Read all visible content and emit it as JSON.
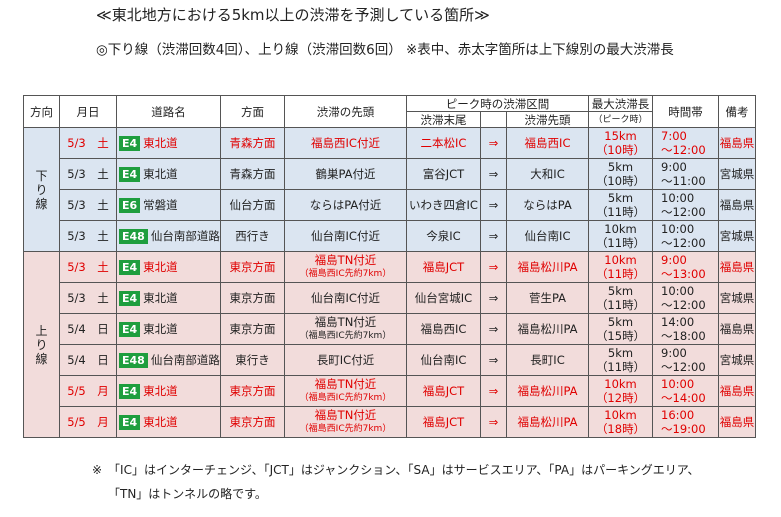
{
  "title": "≪東北地方における5km以上の渋滞を予測している箇所≫",
  "subtitle": "◎下り線（渋滞回数4回）、上り線（渋滞回数6回） ※表中、赤太字箇所は上下線別の最大渋滞長",
  "headers": {
    "direction": "方向",
    "date": "月日",
    "route": "道路名",
    "bound": "方面",
    "head": "渋滞の先頭",
    "peak_section": "ピーク時の渋滞区間",
    "tail_sub": "渋滞末尾",
    "head_sub": "渋滞先頭",
    "max_len": "最大渋滞長",
    "max_len_sub": "（ピーク時）",
    "time": "時間帯",
    "remarks": "備考"
  },
  "groups": {
    "down": [
      "下",
      "り",
      "線"
    ],
    "up": [
      "上",
      "り",
      "線"
    ]
  },
  "arrow": "⇒",
  "rows": [
    {
      "date": "5/3　土",
      "badge": "E4",
      "road": "東北道",
      "bound": "青森方面",
      "head": "福島西IC付近",
      "head2": "",
      "tail": "二本松IC",
      "sec_head": "福島西IC",
      "len": "15km",
      "len2": "（10時）",
      "time1": "7:00",
      "time2": "～12:00",
      "remarks": "福島県"
    },
    {
      "date": "5/3　土",
      "badge": "E4",
      "road": "東北道",
      "bound": "青森方面",
      "head": "鶴巣PA付近",
      "head2": "",
      "tail": "富谷JCT",
      "sec_head": "大和IC",
      "len": "5km",
      "len2": "（10時）",
      "time1": "9:00",
      "time2": "～11:00",
      "remarks": "宮城県"
    },
    {
      "date": "5/3　土",
      "badge": "E6",
      "road": "常磐道",
      "bound": "仙台方面",
      "head": "ならはPA付近",
      "head2": "",
      "tail": "いわき四倉IC",
      "sec_head": "ならはPA",
      "len": "5km",
      "len2": "（11時）",
      "time1": "10:00",
      "time2": "～12:00",
      "remarks": "福島県"
    },
    {
      "date": "5/3　土",
      "badge": "E48",
      "road": "仙台南部道路",
      "bound": "西行き",
      "head": "仙台南IC付近",
      "head2": "",
      "tail": "今泉IC",
      "sec_head": "仙台南IC",
      "len": "10km",
      "len2": "（11時）",
      "time1": "10:00",
      "time2": "～12:00",
      "remarks": "宮城県"
    },
    {
      "date": "5/3　土",
      "badge": "E4",
      "road": "東北道",
      "bound": "東京方面",
      "head": "福島TN付近",
      "head2": "（福島西IC先約7km）",
      "tail": "福島JCT",
      "sec_head": "福島松川PA",
      "len": "10km",
      "len2": "（11時）",
      "time1": "9:00",
      "time2": "～13:00",
      "remarks": "福島県"
    },
    {
      "date": "5/3　土",
      "badge": "E4",
      "road": "東北道",
      "bound": "東京方面",
      "head": "仙台南IC付近",
      "head2": "",
      "tail": "仙台宮城IC",
      "sec_head": "菅生PA",
      "len": "5km",
      "len2": "（11時）",
      "time1": "10:00",
      "time2": "～12:00",
      "remarks": "宮城県"
    },
    {
      "date": "5/4　日",
      "badge": "E4",
      "road": "東北道",
      "bound": "東京方面",
      "head": "福島TN付近",
      "head2": "（福島西IC先約7km）",
      "tail": "福島西IC",
      "sec_head": "福島松川PA",
      "len": "5km",
      "len2": "（15時）",
      "time1": "14:00",
      "time2": "～18:00",
      "remarks": "福島県"
    },
    {
      "date": "5/4　日",
      "badge": "E48",
      "road": "仙台南部道路",
      "bound": "東行き",
      "head": "長町IC付近",
      "head2": "",
      "tail": "仙台南IC",
      "sec_head": "長町IC",
      "len": "5km",
      "len2": "（11時）",
      "time1": "9:00",
      "time2": "～12:00",
      "remarks": "宮城県"
    },
    {
      "date": "5/5　月",
      "badge": "E4",
      "road": "東北道",
      "bound": "東京方面",
      "head": "福島TN付近",
      "head2": "（福島西IC先約7km）",
      "tail": "福島JCT",
      "sec_head": "福島松川PA",
      "len": "10km",
      "len2": "（12時）",
      "time1": "10:00",
      "time2": "～14:00",
      "remarks": "福島県"
    },
    {
      "date": "5/5　月",
      "badge": "E4",
      "road": "東北道",
      "bound": "東京方面",
      "head": "福島TN付近",
      "head2": "（福島西IC先約7km）",
      "tail": "福島JCT",
      "sec_head": "福島松川PA",
      "len": "10km",
      "len2": "（18時）",
      "time1": "16:00",
      "time2": "～19:00",
      "remarks": "福島県"
    }
  ],
  "notes": [
    "※　「IC」はインターチェンジ、「JCT」はジャンクション、「SA」はサービスエリア、「PA」はパーキングエリア、",
    "「TN」はトンネルの略です。"
  ],
  "colors": {
    "down_bg": "#dbe5f1",
    "up_bg": "#f2dcdb",
    "highlight_text": "#e00000",
    "route_badge": "#1e9e3e"
  },
  "highlighted_rows": [
    0,
    4,
    8,
    9
  ]
}
